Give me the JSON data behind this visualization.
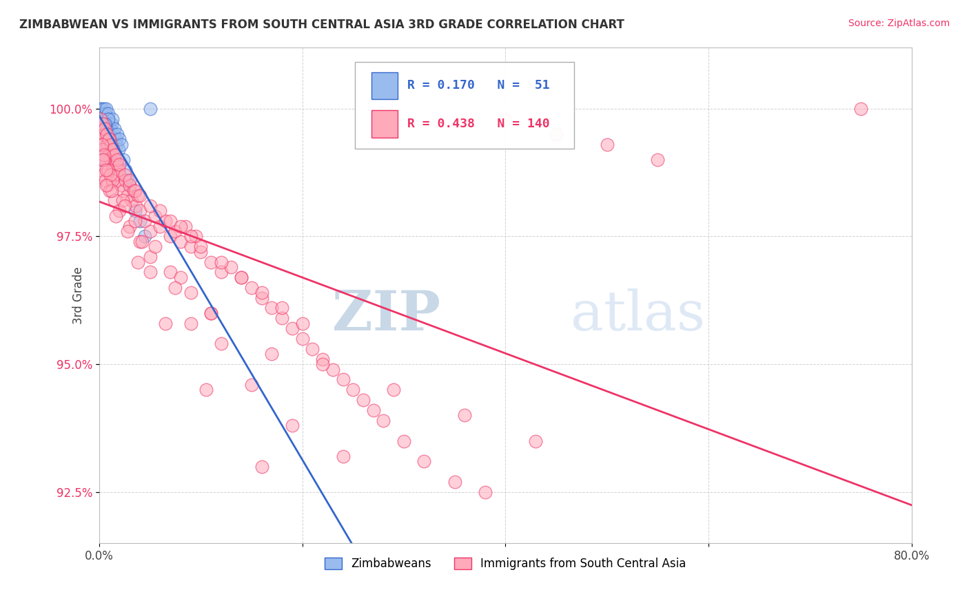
{
  "title": "ZIMBABWEAN VS IMMIGRANTS FROM SOUTH CENTRAL ASIA 3RD GRADE CORRELATION CHART",
  "source_text": "Source: ZipAtlas.com",
  "ylabel": "3rd Grade",
  "xlim": [
    0.0,
    80.0
  ],
  "ylim": [
    91.5,
    101.2
  ],
  "yticks": [
    92.5,
    95.0,
    97.5,
    100.0
  ],
  "ytick_labels": [
    "92.5%",
    "95.0%",
    "97.5%",
    "100.0%"
  ],
  "blue_R": 0.17,
  "blue_N": 51,
  "pink_R": 0.438,
  "pink_N": 140,
  "blue_color": "#99BBEE",
  "pink_color": "#FFAABB",
  "blue_line_color": "#3366CC",
  "pink_line_color": "#EE3366",
  "legend_label_blue": "Zimbabweans",
  "legend_label_pink": "Immigrants from South Central Asia",
  "watermark_zip": "ZIP",
  "watermark_atlas": "atlas",
  "watermark_color": "#C5D8EE",
  "background_color": "#FFFFFF",
  "grid_color": "#CCCCCC",
  "title_color": "#333333",
  "source_color": "#EE3366",
  "blue_scatter_x": [
    0.1,
    0.15,
    0.2,
    0.25,
    0.3,
    0.35,
    0.4,
    0.45,
    0.5,
    0.55,
    0.6,
    0.65,
    0.7,
    0.75,
    0.8,
    0.85,
    0.9,
    0.95,
    1.0,
    1.1,
    1.2,
    1.3,
    1.4,
    1.5,
    1.6,
    1.7,
    1.8,
    1.9,
    2.0,
    2.2,
    2.4,
    2.6,
    2.8,
    3.0,
    3.5,
    4.0,
    4.5,
    0.3,
    0.5,
    0.7,
    1.0,
    0.4,
    0.6,
    0.8,
    1.2,
    0.2,
    0.9,
    1.5,
    5.0,
    0.35,
    0.55
  ],
  "blue_scatter_y": [
    99.9,
    100.0,
    99.8,
    100.0,
    99.7,
    99.9,
    99.8,
    100.0,
    99.6,
    99.8,
    99.9,
    100.0,
    99.7,
    99.5,
    99.8,
    99.6,
    99.9,
    99.7,
    99.5,
    99.6,
    99.7,
    99.8,
    99.5,
    99.6,
    99.4,
    99.3,
    99.5,
    99.2,
    99.4,
    99.3,
    99.0,
    98.8,
    98.6,
    98.5,
    98.0,
    97.8,
    97.5,
    99.4,
    99.5,
    99.6,
    99.3,
    99.2,
    99.7,
    99.4,
    99.1,
    99.0,
    99.8,
    99.0,
    100.0,
    99.6,
    99.7
  ],
  "pink_scatter_x": [
    0.1,
    0.2,
    0.3,
    0.4,
    0.5,
    0.6,
    0.7,
    0.8,
    0.9,
    1.0,
    1.1,
    1.2,
    1.3,
    1.4,
    1.5,
    1.6,
    1.7,
    1.8,
    1.9,
    2.0,
    2.2,
    2.4,
    2.6,
    2.8,
    3.0,
    3.2,
    3.4,
    3.6,
    3.8,
    4.0,
    4.5,
    5.0,
    5.5,
    6.0,
    6.5,
    7.0,
    7.5,
    8.0,
    8.5,
    9.0,
    9.5,
    10.0,
    11.0,
    12.0,
    13.0,
    14.0,
    15.0,
    16.0,
    17.0,
    18.0,
    19.0,
    20.0,
    21.0,
    22.0,
    23.0,
    24.0,
    25.0,
    26.0,
    27.0,
    28.0,
    30.0,
    32.0,
    35.0,
    38.0,
    40.0,
    45.0,
    50.0,
    55.0,
    75.0,
    0.15,
    0.35,
    0.55,
    0.75,
    0.95,
    1.15,
    1.35,
    1.55,
    1.75,
    1.95,
    2.5,
    3.0,
    3.5,
    4.0,
    5.0,
    6.0,
    7.0,
    8.0,
    9.0,
    10.0,
    12.0,
    14.0,
    16.0,
    18.0,
    20.0,
    0.2,
    0.4,
    0.6,
    0.8,
    1.0,
    1.5,
    2.0,
    3.0,
    4.0,
    5.0,
    7.0,
    9.0,
    11.0,
    0.3,
    0.5,
    0.9,
    1.3,
    2.3,
    3.5,
    5.5,
    8.0,
    11.0,
    17.0,
    22.0,
    29.0,
    36.0,
    43.0,
    0.25,
    0.45,
    1.1,
    2.5,
    4.2,
    7.5,
    12.0,
    19.0,
    0.35,
    0.65,
    1.2,
    2.8,
    5.0,
    9.0,
    15.0,
    24.0,
    0.7,
    1.6,
    3.8,
    6.5,
    10.5,
    16.0
  ],
  "pink_scatter_y": [
    99.5,
    99.3,
    99.6,
    99.4,
    99.5,
    99.2,
    99.0,
    99.3,
    99.1,
    99.4,
    99.0,
    99.2,
    98.8,
    99.1,
    98.9,
    98.7,
    98.9,
    98.6,
    98.8,
    98.7,
    98.5,
    98.4,
    98.6,
    98.3,
    98.5,
    98.2,
    98.4,
    98.1,
    98.3,
    98.0,
    97.8,
    97.6,
    97.9,
    97.7,
    97.8,
    97.5,
    97.6,
    97.4,
    97.7,
    97.3,
    97.5,
    97.2,
    97.0,
    96.8,
    96.9,
    96.7,
    96.5,
    96.3,
    96.1,
    95.9,
    95.7,
    95.5,
    95.3,
    95.1,
    94.9,
    94.7,
    94.5,
    94.3,
    94.1,
    93.9,
    93.5,
    93.1,
    92.7,
    92.5,
    99.8,
    99.5,
    99.3,
    99.0,
    100.0,
    99.8,
    99.7,
    99.6,
    99.5,
    99.4,
    99.3,
    99.2,
    99.1,
    99.0,
    98.9,
    98.7,
    98.6,
    98.4,
    98.3,
    98.1,
    98.0,
    97.8,
    97.7,
    97.5,
    97.3,
    97.0,
    96.7,
    96.4,
    96.1,
    95.8,
    98.8,
    98.7,
    98.6,
    98.5,
    98.4,
    98.2,
    98.0,
    97.7,
    97.4,
    97.1,
    96.8,
    96.4,
    96.0,
    99.2,
    99.0,
    98.8,
    98.6,
    98.2,
    97.8,
    97.3,
    96.7,
    96.0,
    95.2,
    95.0,
    94.5,
    94.0,
    93.5,
    99.3,
    99.1,
    98.7,
    98.1,
    97.4,
    96.5,
    95.4,
    93.8,
    99.0,
    98.8,
    98.4,
    97.6,
    96.8,
    95.8,
    94.6,
    93.2,
    98.5,
    97.9,
    97.0,
    95.8,
    94.5,
    93.0
  ]
}
